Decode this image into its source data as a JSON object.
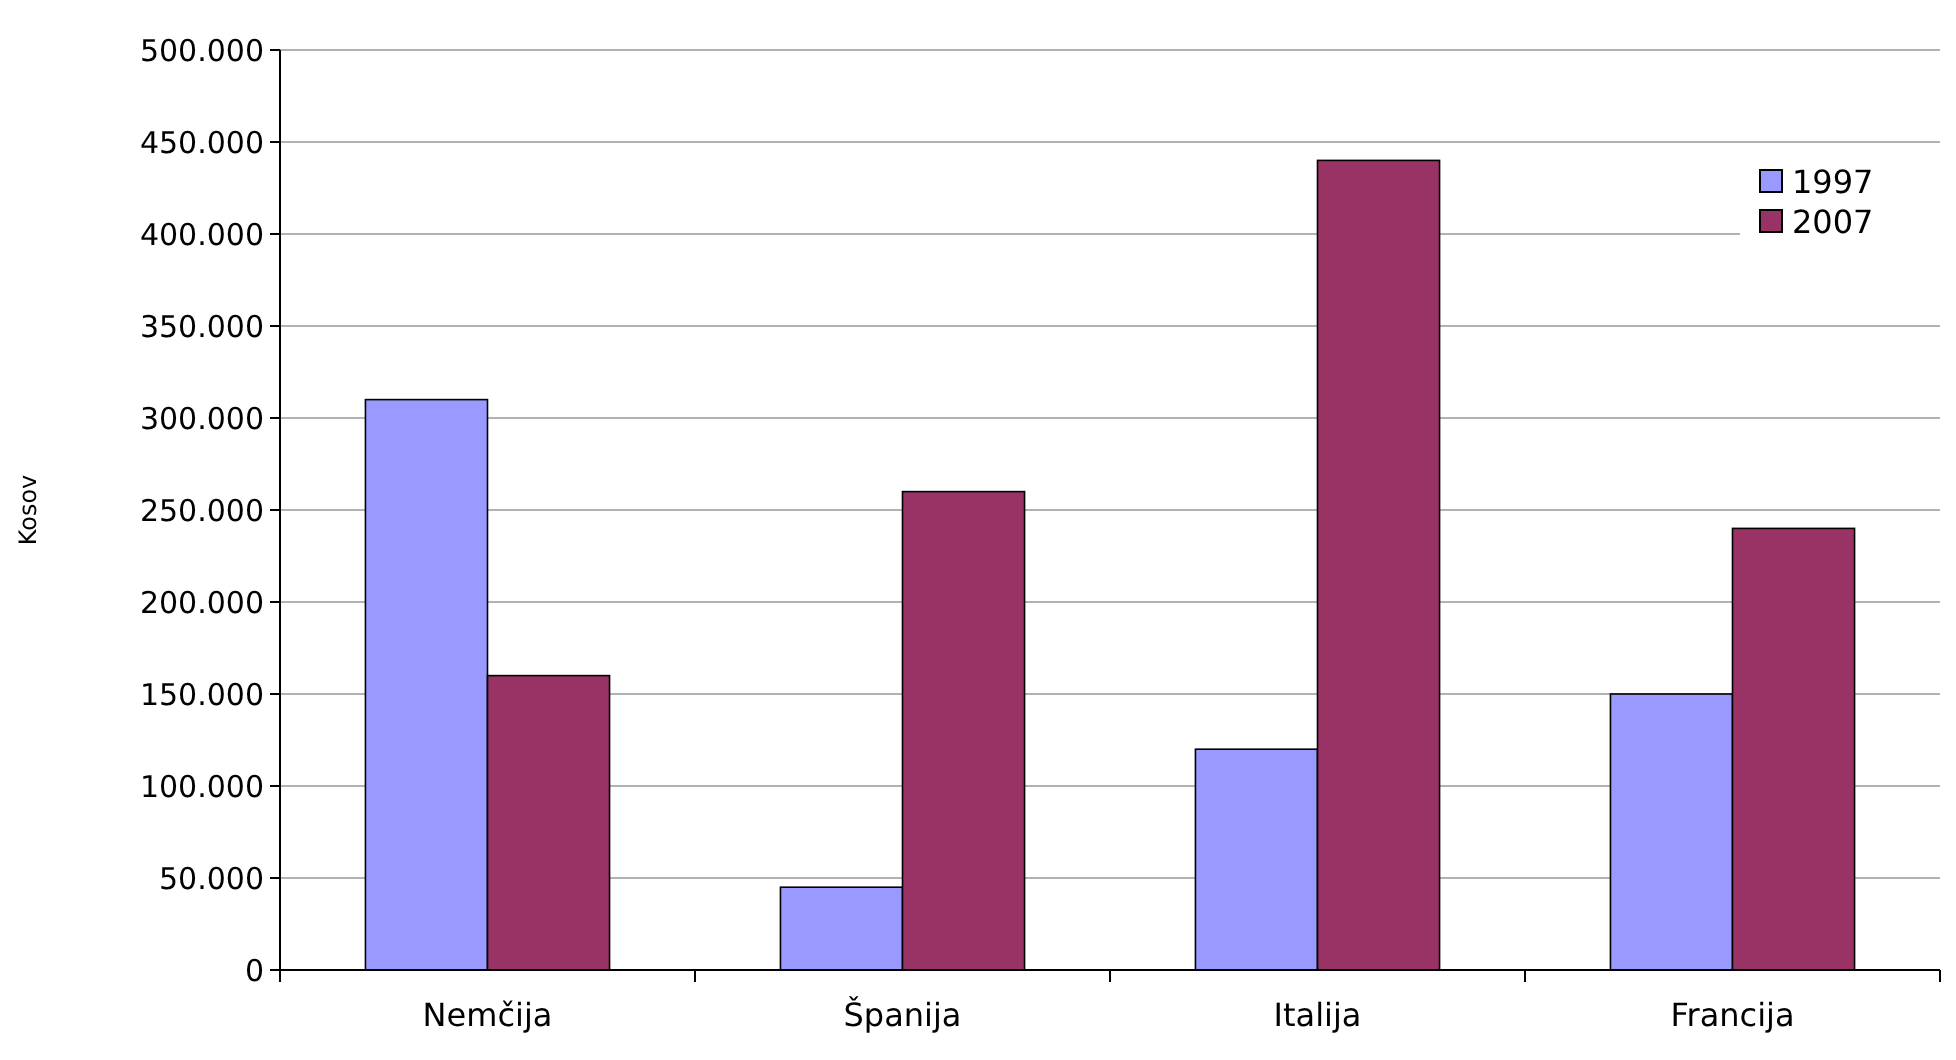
{
  "chart_data": {
    "type": "bar",
    "ylabel": "Kosov",
    "categories": [
      "Nemčija",
      "Španija",
      "Italija",
      "Francija"
    ],
    "series": [
      {
        "name": "1997",
        "color": "#9999ff",
        "values": [
          310000,
          45000,
          120000,
          150000
        ]
      },
      {
        "name": "2007",
        "color": "#993366",
        "values": [
          160000,
          260000,
          440000,
          240000
        ]
      }
    ],
    "ylim": [
      0,
      500000
    ],
    "yticks": [
      {
        "value": 0,
        "label": "0"
      },
      {
        "value": 50000,
        "label": "50.000"
      },
      {
        "value": 100000,
        "label": "100.000"
      },
      {
        "value": 150000,
        "label": "150.000"
      },
      {
        "value": 200000,
        "label": "200.000"
      },
      {
        "value": 250000,
        "label": "250.000"
      },
      {
        "value": 300000,
        "label": "300.000"
      },
      {
        "value": 350000,
        "label": "350.000"
      },
      {
        "value": 400000,
        "label": "400.000"
      },
      {
        "value": 450000,
        "label": "450.000"
      },
      {
        "value": 500000,
        "label": "500.000"
      }
    ],
    "grid": "y",
    "legend": "top right"
  }
}
